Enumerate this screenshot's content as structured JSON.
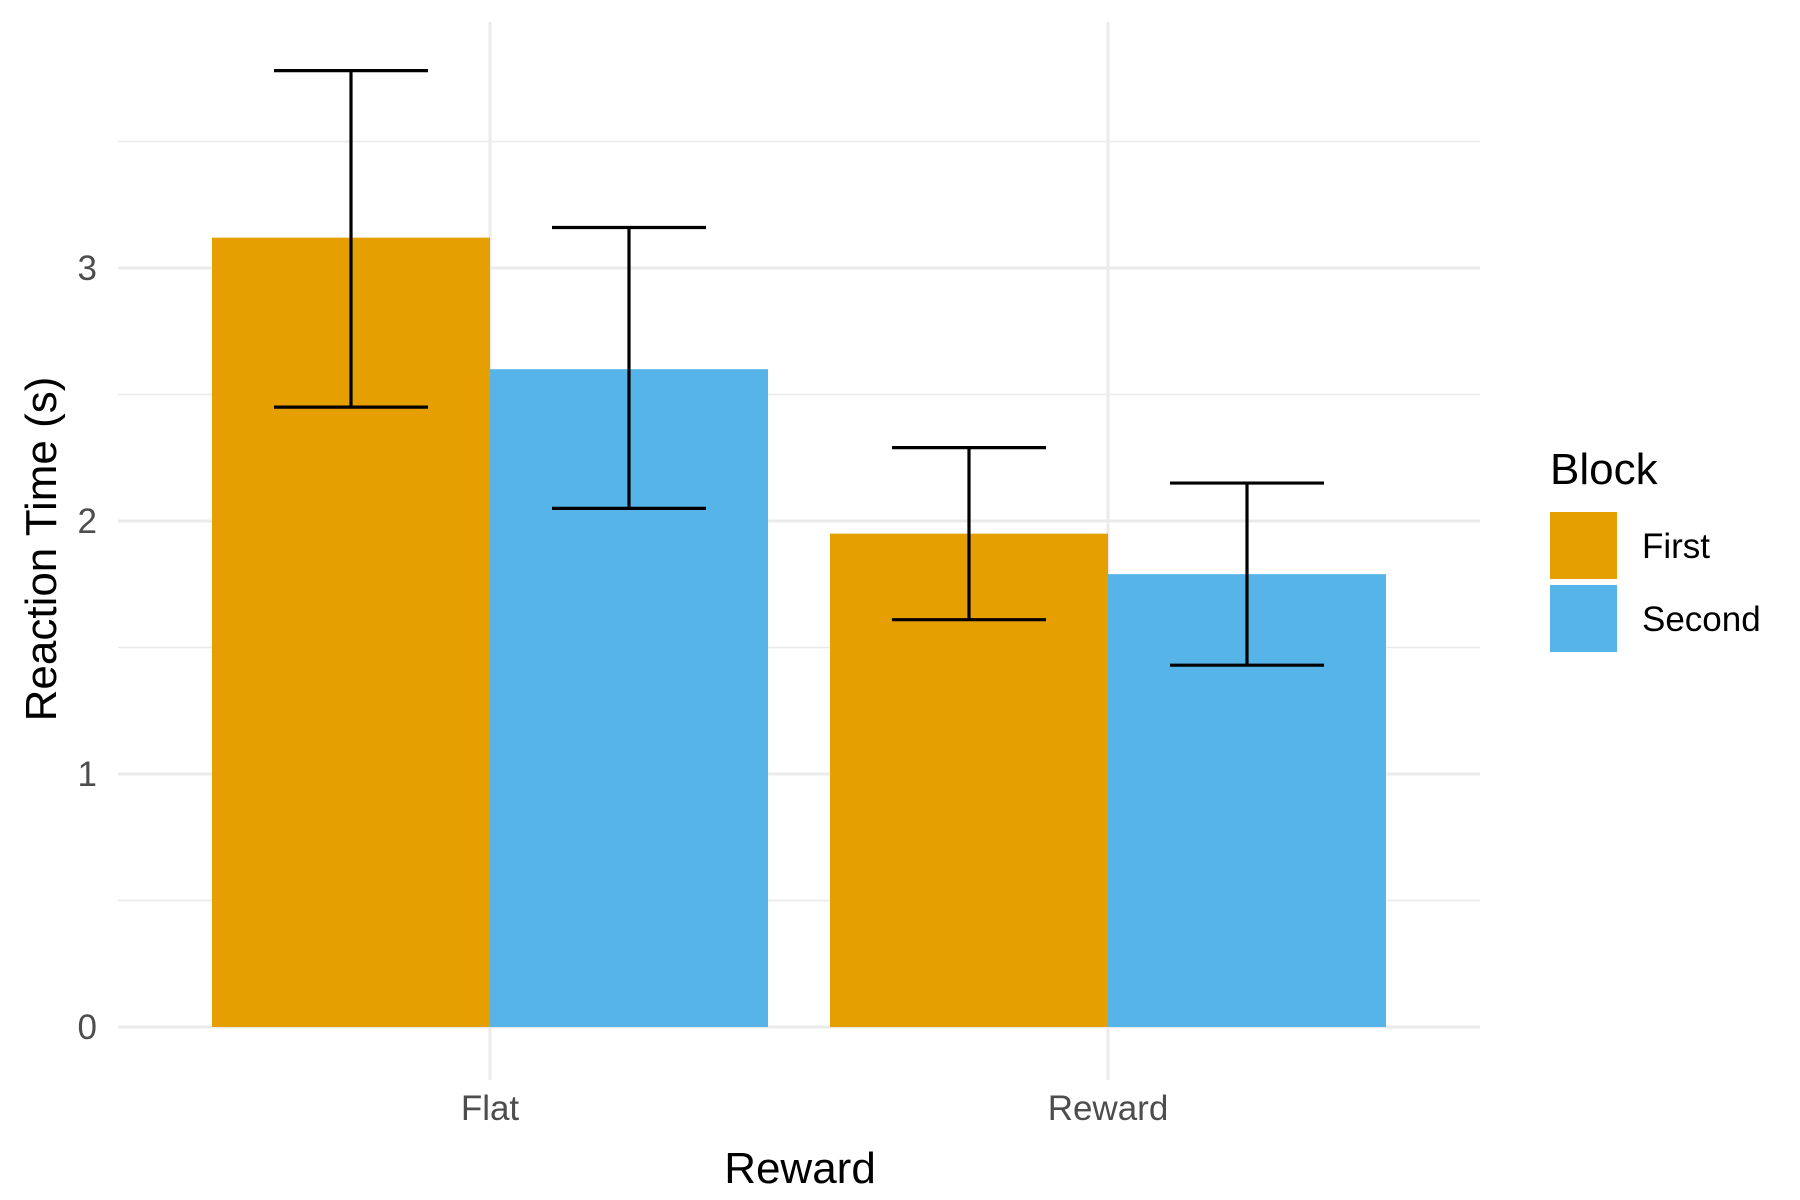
{
  "chart_data": {
    "type": "bar",
    "categories": [
      "Flat",
      "Reward"
    ],
    "series": [
      {
        "name": "First",
        "color": "#E69F00",
        "values": [
          3.12,
          1.95
        ],
        "error_low": [
          2.45,
          1.61
        ],
        "error_high": [
          3.78,
          2.29
        ]
      },
      {
        "name": "Second",
        "color": "#56B4E9",
        "values": [
          2.6,
          1.79
        ],
        "error_low": [
          2.05,
          1.43
        ],
        "error_high": [
          3.16,
          2.15
        ]
      }
    ],
    "xlabel": "Reward",
    "ylabel": "Reaction Time (s)",
    "ylim": [
      0,
      3.9
    ],
    "yticks": [
      "0",
      "1",
      "2",
      "3"
    ],
    "grid": true,
    "legend": {
      "title": "Block",
      "placement": "right"
    }
  }
}
